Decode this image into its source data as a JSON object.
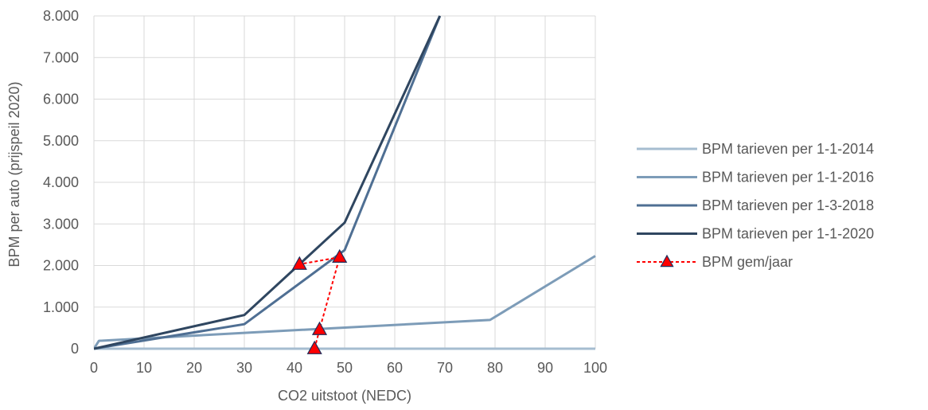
{
  "chart_data": {
    "type": "line",
    "title": "",
    "xlabel": "CO2 uitstoot (NEDC)",
    "ylabel": "BPM per auto (prijspeil 2020)",
    "xlim": [
      0,
      100
    ],
    "ylim": [
      0,
      8000
    ],
    "x_ticks": [
      "0",
      "10",
      "20",
      "30",
      "40",
      "50",
      "60",
      "70",
      "80",
      "90",
      "100"
    ],
    "y_ticks": [
      "0",
      "1.000",
      "2.000",
      "3.000",
      "4.000",
      "5.000",
      "6.000",
      "7.000",
      "8.000"
    ],
    "grid": true,
    "legend_position": "right",
    "series": [
      {
        "name": "BPM tarieven per 1-1-2014",
        "color": "#a6bdd0",
        "style": "solid",
        "points": [
          [
            0,
            0
          ],
          [
            100,
            0
          ]
        ]
      },
      {
        "name": "BPM tarieven per 1-1-2016",
        "color": "#7d9cb8",
        "style": "solid",
        "points": [
          [
            0,
            0
          ],
          [
            1,
            190
          ],
          [
            30,
            380
          ],
          [
            79,
            690
          ],
          [
            100,
            2230
          ]
        ]
      },
      {
        "name": "BPM tarieven per 1-3-2018",
        "color": "#4f6f93",
        "style": "solid",
        "points": [
          [
            0,
            0
          ],
          [
            30,
            590
          ],
          [
            50,
            2370
          ],
          [
            69,
            8000
          ]
        ]
      },
      {
        "name": "BPM tarieven per 1-1-2020",
        "color": "#2f4660",
        "style": "solid",
        "points": [
          [
            0,
            0
          ],
          [
            30,
            810
          ],
          [
            50,
            3030
          ],
          [
            69,
            8000
          ]
        ]
      },
      {
        "name": "BPM gem/jaar",
        "color": "#ff0000",
        "style": "dashed",
        "marker": "triangle",
        "marker_fill": "#ff0000",
        "marker_edge": "#1f2d5a",
        "points": [
          [
            44,
            0
          ],
          [
            45,
            460
          ],
          [
            49,
            2200
          ],
          [
            41,
            2030
          ]
        ]
      }
    ]
  }
}
